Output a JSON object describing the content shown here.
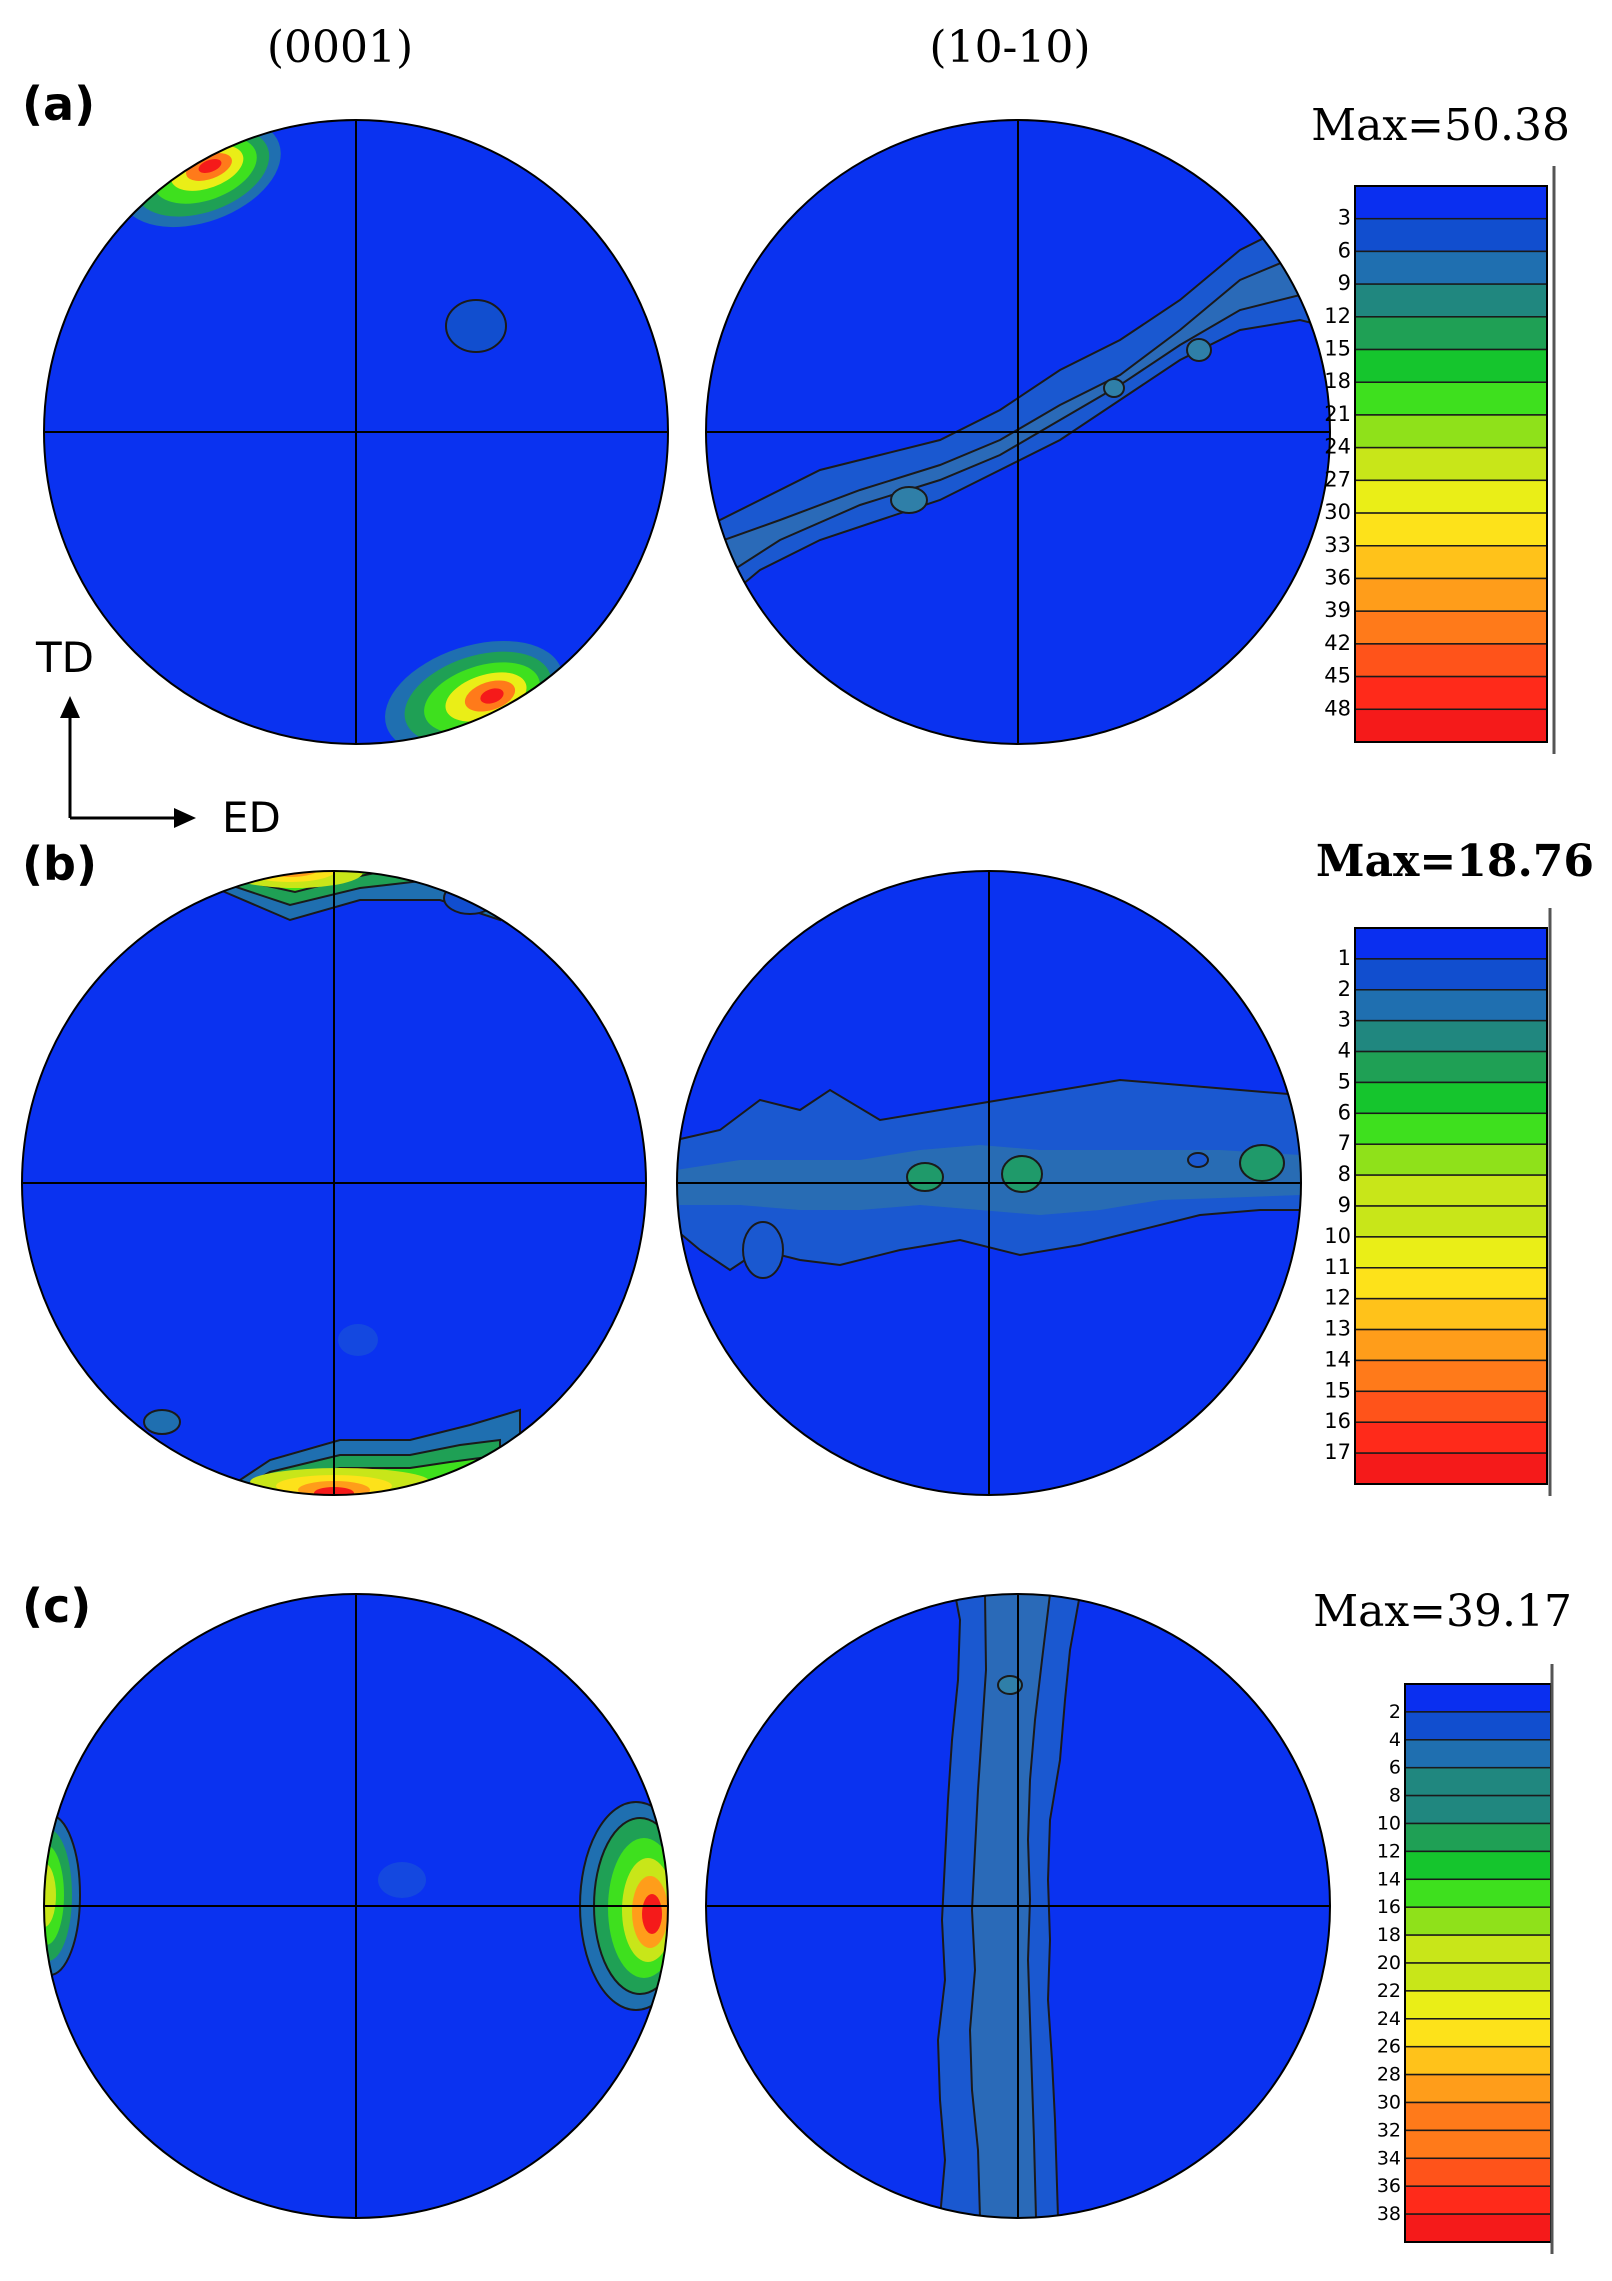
{
  "figure": {
    "column_headers": [
      "(0001)",
      "(10-10)"
    ],
    "axis_labels": {
      "vertical": "TD",
      "horizontal": "ED"
    },
    "panels": [
      {
        "id": "a",
        "label": "(a)",
        "max_text": "Max=50.38",
        "legend_values": [
          "3",
          "6",
          "9",
          "12",
          "15",
          "18",
          "21",
          "24",
          "27",
          "30",
          "33",
          "36",
          "39",
          "42",
          "45",
          "48"
        ]
      },
      {
        "id": "b",
        "label": "(b)",
        "max_text": "Max=18.76",
        "legend_values": [
          "1",
          "2",
          "3",
          "4",
          "5",
          "6",
          "7",
          "8",
          "9",
          "10",
          "11",
          "12",
          "13",
          "14",
          "15",
          "16",
          "17"
        ]
      },
      {
        "id": "c",
        "label": "(c)",
        "max_text": "Max=39.17",
        "legend_values": [
          "2",
          "4",
          "6",
          "8",
          "10",
          "12",
          "14",
          "16",
          "18",
          "20",
          "22",
          "24",
          "26",
          "28",
          "30",
          "32",
          "34",
          "36",
          "38"
        ]
      }
    ]
  },
  "colors": {
    "background_blue": "#0a32f0",
    "spread_blue": "#2a5fc8",
    "scale": [
      "#0a2ff0",
      "#114ecf",
      "#1f6fb0",
      "#20877f",
      "#1fa055",
      "#15c52d",
      "#3ee01e",
      "#8fe11a",
      "#c8e619",
      "#eaee17",
      "#fde21a",
      "#ffc21a",
      "#ff9d1a",
      "#ff7a1a",
      "#ff531a",
      "#ff2a1a",
      "#f51a1a"
    ]
  }
}
